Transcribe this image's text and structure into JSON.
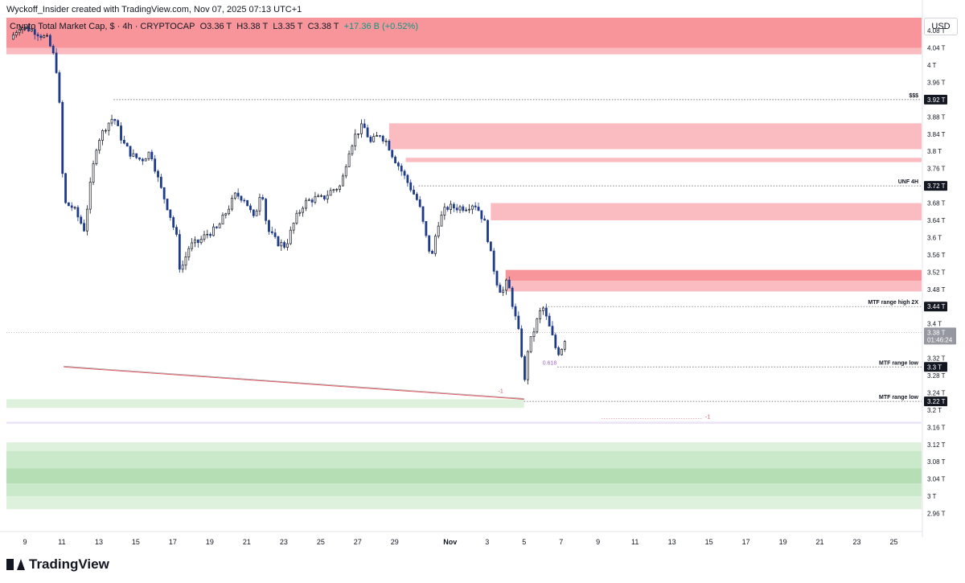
{
  "header": {
    "creator_line": "Wyckoff_Insider created with TradingView.com, Nov 07, 2025 07:13 UTC+1",
    "symbol": "Crypto Total Market Cap, $ · 4h · CRYPTOCAP",
    "open": "O3.36 T",
    "high": "H3.38 T",
    "low": "L3.35 T",
    "close": "C3.38 T",
    "change": "+17.36 B (+0.52%)"
  },
  "currency": "USD",
  "footer": {
    "brand": "TradingView"
  },
  "colors": {
    "up": "#131722",
    "down": "#1e3a8a",
    "supply": "#f7838a",
    "supply_light": "#f9b0b5",
    "demand": "#a8d8a8",
    "demand_light": "#d7eed7",
    "purple": "#e9dff7"
  },
  "chart_data": {
    "type": "candlestick",
    "ylim": [
      2.92,
      4.11
    ],
    "y_ticks": [
      4.08,
      4.04,
      4.0,
      3.96,
      3.88,
      3.84,
      3.8,
      3.76,
      3.68,
      3.64,
      3.6,
      3.56,
      3.52,
      3.48,
      3.4,
      3.32,
      3.28,
      3.24,
      3.2,
      3.16,
      3.12,
      3.08,
      3.04,
      3.0,
      2.96
    ],
    "y_tick_labels": [
      "4.08 T",
      "4.04 T",
      "4 T",
      "3.96 T",
      "3.88 T",
      "3.84 T",
      "3.8 T",
      "3.76 T",
      "3.68 T",
      "3.64 T",
      "3.6 T",
      "3.56 T",
      "3.52 T",
      "3.48 T",
      "3.4 T",
      "3.32 T",
      "3.28 T",
      "3.24 T",
      "3.2 T",
      "3.16 T",
      "3.12 T",
      "3.08 T",
      "3.04 T",
      "3 T",
      "2.96 T"
    ],
    "x_ticks": [
      "9",
      "11",
      "13",
      "15",
      "17",
      "19",
      "21",
      "23",
      "25",
      "27",
      "29",
      "Nov",
      "3",
      "5",
      "7",
      "9",
      "11",
      "13",
      "15",
      "17",
      "19",
      "21",
      "23",
      "25"
    ],
    "x_tick_days": [
      9,
      11,
      13,
      15,
      17,
      19,
      21,
      23,
      25,
      27,
      29,
      32,
      34,
      36,
      38,
      40,
      42,
      44,
      46,
      48,
      50,
      52,
      54,
      56
    ],
    "x_range_days": [
      8.0,
      57.5
    ],
    "price_path": [
      [
        8.2,
        4.06
      ],
      [
        8.7,
        4.09
      ],
      [
        9.5,
        4.08
      ],
      [
        10.2,
        4.06
      ],
      [
        10.5,
        4.03
      ],
      [
        10.8,
        3.97
      ],
      [
        11.0,
        3.78
      ],
      [
        11.1,
        3.68
      ],
      [
        11.6,
        3.67
      ],
      [
        12.2,
        3.62
      ],
      [
        12.6,
        3.74
      ],
      [
        12.9,
        3.82
      ],
      [
        13.4,
        3.86
      ],
      [
        13.8,
        3.88
      ],
      [
        14.3,
        3.82
      ],
      [
        14.8,
        3.79
      ],
      [
        15.3,
        3.78
      ],
      [
        15.8,
        3.8
      ],
      [
        16.3,
        3.72
      ],
      [
        16.8,
        3.66
      ],
      [
        17.2,
        3.6
      ],
      [
        17.4,
        3.52
      ],
      [
        17.9,
        3.58
      ],
      [
        18.4,
        3.59
      ],
      [
        18.9,
        3.61
      ],
      [
        19.4,
        3.62
      ],
      [
        19.9,
        3.66
      ],
      [
        20.4,
        3.7
      ],
      [
        20.9,
        3.69
      ],
      [
        21.4,
        3.64
      ],
      [
        21.8,
        3.72
      ],
      [
        22.1,
        3.62
      ],
      [
        22.6,
        3.59
      ],
      [
        23.1,
        3.58
      ],
      [
        23.6,
        3.64
      ],
      [
        24.1,
        3.68
      ],
      [
        24.6,
        3.69
      ],
      [
        25.1,
        3.69
      ],
      [
        25.6,
        3.71
      ],
      [
        26.1,
        3.72
      ],
      [
        26.5,
        3.8
      ],
      [
        26.9,
        3.84
      ],
      [
        27.3,
        3.86
      ],
      [
        27.7,
        3.82
      ],
      [
        28.2,
        3.84
      ],
      [
        28.6,
        3.82
      ],
      [
        28.9,
        3.79
      ],
      [
        29.3,
        3.76
      ],
      [
        29.8,
        3.72
      ],
      [
        30.3,
        3.68
      ],
      [
        30.7,
        3.6
      ],
      [
        31.0,
        3.55
      ],
      [
        31.3,
        3.63
      ],
      [
        31.8,
        3.67
      ],
      [
        32.3,
        3.67
      ],
      [
        32.8,
        3.67
      ],
      [
        33.3,
        3.68
      ],
      [
        33.6,
        3.66
      ],
      [
        33.9,
        3.63
      ],
      [
        34.2,
        3.56
      ],
      [
        34.5,
        3.5
      ],
      [
        34.8,
        3.47
      ],
      [
        35.1,
        3.5
      ],
      [
        35.4,
        3.44
      ],
      [
        35.7,
        3.38
      ],
      [
        35.9,
        3.32
      ],
      [
        36.0,
        3.25
      ],
      [
        36.2,
        3.34
      ],
      [
        36.5,
        3.38
      ],
      [
        36.8,
        3.42
      ],
      [
        37.0,
        3.44
      ],
      [
        37.3,
        3.4
      ],
      [
        37.6,
        3.36
      ],
      [
        37.8,
        3.33
      ],
      [
        38.1,
        3.35
      ],
      [
        38.3,
        3.38
      ]
    ],
    "zones": [
      {
        "kind": "supply",
        "from_day": 8.0,
        "low": 4.04,
        "high": 4.11,
        "shade": "strong"
      },
      {
        "kind": "supply",
        "from_day": 8.0,
        "low": 4.025,
        "high": 4.04,
        "shade": "light"
      },
      {
        "kind": "supply",
        "from_day": 28.7,
        "low": 3.805,
        "high": 3.865,
        "shade": "light"
      },
      {
        "kind": "supply",
        "from_day": 29.6,
        "low": 3.775,
        "high": 3.785,
        "shade": "light"
      },
      {
        "kind": "supply",
        "from_day": 34.2,
        "low": 3.64,
        "high": 3.68,
        "shade": "light"
      },
      {
        "kind": "supply",
        "from_day": 35.0,
        "low": 3.5,
        "high": 3.525,
        "shade": "strong"
      },
      {
        "kind": "supply",
        "from_day": 35.0,
        "low": 3.475,
        "high": 3.5,
        "shade": "light"
      },
      {
        "kind": "demand",
        "from_day": 8.0,
        "to_day": 36.0,
        "low": 3.205,
        "high": 3.225,
        "shade": "light"
      },
      {
        "kind": "neutral",
        "from_day": 8.0,
        "low": 3.168,
        "high": 3.173,
        "shade": "light"
      },
      {
        "kind": "demand",
        "from_day": 8.0,
        "low": 3.105,
        "high": 3.125,
        "shade": "light"
      },
      {
        "kind": "demand",
        "from_day": 8.0,
        "low": 3.065,
        "high": 3.105,
        "shade": "mid"
      },
      {
        "kind": "demand",
        "from_day": 8.0,
        "low": 3.03,
        "high": 3.065,
        "shade": "strong"
      },
      {
        "kind": "demand",
        "from_day": 8.0,
        "low": 3.0,
        "high": 3.03,
        "shade": "mid"
      },
      {
        "kind": "demand",
        "from_day": 8.0,
        "low": 2.97,
        "high": 3.0,
        "shade": "light"
      }
    ],
    "levels": [
      {
        "label": "$$$",
        "price": 3.92,
        "price_label": "3.92 T",
        "from_day": 13.8
      },
      {
        "label": "UNF 4H",
        "price": 3.72,
        "price_label": "3.72 T",
        "from_day": 30.3
      },
      {
        "label": "MTF range high 2X",
        "price": 3.44,
        "price_label": "3.44 T",
        "from_day": 37.0
      },
      {
        "label": "MTF range low",
        "price": 3.3,
        "price_label": "3.3 T",
        "from_day": 37.8
      },
      {
        "label": "MTF range low",
        "price": 3.22,
        "price_label": "3.22 T",
        "from_day": 36.0
      }
    ],
    "current": {
      "price": 3.38,
      "price_label": "3.38 T",
      "countdown": "01:46:24"
    },
    "annotations": [
      {
        "text": "0.618",
        "day": 37.0,
        "price": 3.305,
        "color": "#9c5fd6"
      },
      {
        "text": "-1",
        "day": 34.6,
        "price": 3.24,
        "color": "#e05560"
      },
      {
        "text": "-1",
        "day": 45.8,
        "price": 3.18,
        "color": "#e05560"
      }
    ],
    "trendline": [
      [
        11.1,
        3.3
      ],
      [
        36.0,
        3.225
      ]
    ]
  }
}
